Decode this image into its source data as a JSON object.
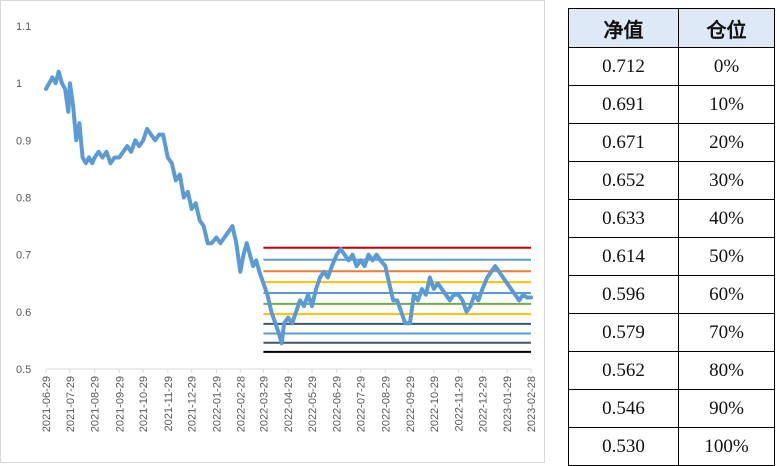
{
  "chart_data": {
    "type": "line",
    "title": "",
    "xlabel": "",
    "ylabel": "",
    "ylim": [
      0.5,
      1.1
    ],
    "yticks": [
      "0.5",
      "0.6",
      "0.7",
      "0.8",
      "0.9",
      "1",
      "1.1"
    ],
    "xticks": [
      "2021-06-29",
      "2021-07-29",
      "2021-08-29",
      "2021-09-29",
      "2021-10-29",
      "2021-11-29",
      "2021-12-29",
      "2022-01-29",
      "2022-02-28",
      "2022-03-29",
      "2022-04-29",
      "2022-05-29",
      "2022-06-29",
      "2022-07-29",
      "2022-08-29",
      "2022-09-29",
      "2022-10-29",
      "2022-11-29",
      "2022-12-29",
      "2023-01-29",
      "2023-02-28"
    ],
    "series": [
      {
        "color": "#5b9bd5",
        "points": [
          [
            "2021-06-29",
            0.99
          ],
          [
            "2021-07-03",
            1.0
          ],
          [
            "2021-07-07",
            1.01
          ],
          [
            "2021-07-11",
            1.0
          ],
          [
            "2021-07-15",
            1.02
          ],
          [
            "2021-07-19",
            1.0
          ],
          [
            "2021-07-23",
            0.99
          ],
          [
            "2021-07-27",
            0.95
          ],
          [
            "2021-07-29",
            1.0
          ],
          [
            "2021-08-02",
            0.96
          ],
          [
            "2021-08-06",
            0.9
          ],
          [
            "2021-08-10",
            0.93
          ],
          [
            "2021-08-14",
            0.87
          ],
          [
            "2021-08-18",
            0.86
          ],
          [
            "2021-08-22",
            0.87
          ],
          [
            "2021-08-26",
            0.86
          ],
          [
            "2021-08-29",
            0.87
          ],
          [
            "2021-09-03",
            0.88
          ],
          [
            "2021-09-08",
            0.87
          ],
          [
            "2021-09-13",
            0.88
          ],
          [
            "2021-09-18",
            0.86
          ],
          [
            "2021-09-23",
            0.87
          ],
          [
            "2021-09-29",
            0.87
          ],
          [
            "2021-10-04",
            0.88
          ],
          [
            "2021-10-09",
            0.89
          ],
          [
            "2021-10-14",
            0.88
          ],
          [
            "2021-10-19",
            0.9
          ],
          [
            "2021-10-24",
            0.89
          ],
          [
            "2021-10-29",
            0.9
          ],
          [
            "2021-11-03",
            0.92
          ],
          [
            "2021-11-08",
            0.91
          ],
          [
            "2021-11-13",
            0.9
          ],
          [
            "2021-11-18",
            0.91
          ],
          [
            "2021-11-23",
            0.91
          ],
          [
            "2021-11-29",
            0.87
          ],
          [
            "2021-12-04",
            0.86
          ],
          [
            "2021-12-09",
            0.83
          ],
          [
            "2021-12-14",
            0.84
          ],
          [
            "2021-12-19",
            0.8
          ],
          [
            "2021-12-24",
            0.81
          ],
          [
            "2021-12-29",
            0.78
          ],
          [
            "2022-01-03",
            0.79
          ],
          [
            "2022-01-08",
            0.76
          ],
          [
            "2022-01-13",
            0.75
          ],
          [
            "2022-01-18",
            0.72
          ],
          [
            "2022-01-23",
            0.72
          ],
          [
            "2022-01-29",
            0.73
          ],
          [
            "2022-02-03",
            0.72
          ],
          [
            "2022-02-08",
            0.73
          ],
          [
            "2022-02-13",
            0.74
          ],
          [
            "2022-02-18",
            0.75
          ],
          [
            "2022-02-23",
            0.72
          ],
          [
            "2022-02-28",
            0.67
          ],
          [
            "2022-03-04",
            0.7
          ],
          [
            "2022-03-08",
            0.72
          ],
          [
            "2022-03-12",
            0.7
          ],
          [
            "2022-03-16",
            0.68
          ],
          [
            "2022-03-20",
            0.69
          ],
          [
            "2022-03-24",
            0.67
          ],
          [
            "2022-03-29",
            0.65
          ],
          [
            "2022-04-03",
            0.63
          ],
          [
            "2022-04-08",
            0.6
          ],
          [
            "2022-04-13",
            0.58
          ],
          [
            "2022-04-18",
            0.56
          ],
          [
            "2022-04-21",
            0.545
          ],
          [
            "2022-04-24",
            0.58
          ],
          [
            "2022-04-29",
            0.59
          ],
          [
            "2022-05-04",
            0.58
          ],
          [
            "2022-05-09",
            0.6
          ],
          [
            "2022-05-14",
            0.62
          ],
          [
            "2022-05-19",
            0.61
          ],
          [
            "2022-05-24",
            0.63
          ],
          [
            "2022-05-29",
            0.61
          ],
          [
            "2022-06-03",
            0.64
          ],
          [
            "2022-06-08",
            0.66
          ],
          [
            "2022-06-13",
            0.67
          ],
          [
            "2022-06-18",
            0.66
          ],
          [
            "2022-06-23",
            0.68
          ],
          [
            "2022-06-29",
            0.7
          ],
          [
            "2022-07-04",
            0.71
          ],
          [
            "2022-07-09",
            0.7
          ],
          [
            "2022-07-14",
            0.69
          ],
          [
            "2022-07-19",
            0.7
          ],
          [
            "2022-07-24",
            0.68
          ],
          [
            "2022-07-29",
            0.69
          ],
          [
            "2022-08-03",
            0.68
          ],
          [
            "2022-08-08",
            0.7
          ],
          [
            "2022-08-13",
            0.69
          ],
          [
            "2022-08-18",
            0.7
          ],
          [
            "2022-08-23",
            0.69
          ],
          [
            "2022-08-29",
            0.68
          ],
          [
            "2022-09-03",
            0.65
          ],
          [
            "2022-09-08",
            0.62
          ],
          [
            "2022-09-13",
            0.62
          ],
          [
            "2022-09-18",
            0.6
          ],
          [
            "2022-09-23",
            0.58
          ],
          [
            "2022-09-29",
            0.58
          ],
          [
            "2022-10-04",
            0.63
          ],
          [
            "2022-10-09",
            0.62
          ],
          [
            "2022-10-14",
            0.64
          ],
          [
            "2022-10-19",
            0.63
          ],
          [
            "2022-10-24",
            0.66
          ],
          [
            "2022-10-29",
            0.64
          ],
          [
            "2022-11-03",
            0.65
          ],
          [
            "2022-11-08",
            0.64
          ],
          [
            "2022-11-13",
            0.63
          ],
          [
            "2022-11-18",
            0.62
          ],
          [
            "2022-11-23",
            0.63
          ],
          [
            "2022-11-29",
            0.63
          ],
          [
            "2022-12-04",
            0.62
          ],
          [
            "2022-12-09",
            0.6
          ],
          [
            "2022-12-14",
            0.61
          ],
          [
            "2022-12-19",
            0.63
          ],
          [
            "2022-12-24",
            0.62
          ],
          [
            "2022-12-29",
            0.64
          ],
          [
            "2023-01-04",
            0.66
          ],
          [
            "2023-01-09",
            0.67
          ],
          [
            "2023-01-14",
            0.68
          ],
          [
            "2023-01-19",
            0.67
          ],
          [
            "2023-01-24",
            0.66
          ],
          [
            "2023-01-29",
            0.65
          ],
          [
            "2023-02-03",
            0.64
          ],
          [
            "2023-02-08",
            0.63
          ],
          [
            "2023-02-13",
            0.62
          ],
          [
            "2023-02-18",
            0.63
          ],
          [
            "2023-02-23",
            0.625
          ],
          [
            "2023-02-28",
            0.625
          ]
        ]
      }
    ],
    "grid_lines": {
      "x_start": "2022-03-29",
      "x_end": "2023-02-28",
      "levels": [
        {
          "value": 0.712,
          "color": "#c00000"
        },
        {
          "value": 0.691,
          "color": "#5b9bd5"
        },
        {
          "value": 0.671,
          "color": "#ed7d31"
        },
        {
          "value": 0.652,
          "color": "#ffc000"
        },
        {
          "value": 0.633,
          "color": "#5b9bd5"
        },
        {
          "value": 0.614,
          "color": "#70ad47"
        },
        {
          "value": 0.596,
          "color": "#ffc000"
        },
        {
          "value": 0.579,
          "color": "#44546a"
        },
        {
          "value": 0.562,
          "color": "#5b9bd5"
        },
        {
          "value": 0.546,
          "color": "#44546a"
        },
        {
          "value": 0.53,
          "color": "#000000"
        }
      ]
    }
  },
  "table": {
    "headers": [
      "净值",
      "仓位"
    ],
    "rows": [
      [
        "0.712",
        "0%"
      ],
      [
        "0.691",
        "10%"
      ],
      [
        "0.671",
        "20%"
      ],
      [
        "0.652",
        "30%"
      ],
      [
        "0.633",
        "40%"
      ],
      [
        "0.614",
        "50%"
      ],
      [
        "0.596",
        "60%"
      ],
      [
        "0.579",
        "70%"
      ],
      [
        "0.562",
        "80%"
      ],
      [
        "0.546",
        "90%"
      ],
      [
        "0.530",
        "100%"
      ]
    ]
  }
}
